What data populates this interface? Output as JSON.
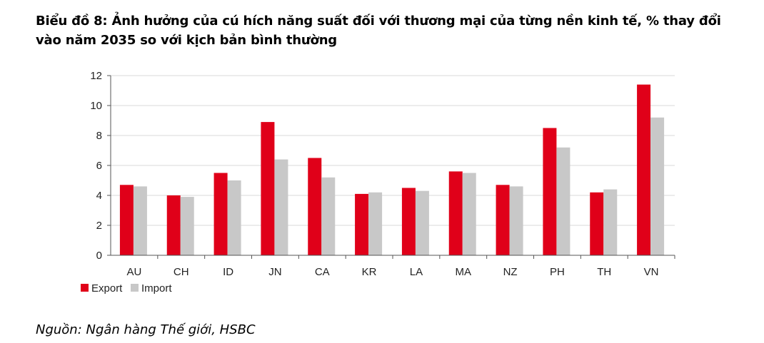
{
  "title": "Biểu đồ 8: Ảnh hưởng của cú hích năng suất đối với thương mại của từng nền kinh tế, % thay đổi vào năm 2035 so với kịch bản bình thường",
  "source": "Nguồn: Ngân hàng Thế giới, HSBC",
  "chart_data": {
    "type": "bar",
    "categories": [
      "AU",
      "CH",
      "ID",
      "JN",
      "CA",
      "KR",
      "LA",
      "MA",
      "NZ",
      "PH",
      "TH",
      "VN"
    ],
    "series": [
      {
        "name": "Export",
        "color": "#e00019",
        "values": [
          4.7,
          4.0,
          5.5,
          8.9,
          6.5,
          4.1,
          4.5,
          5.6,
          4.7,
          8.5,
          4.2,
          11.4
        ]
      },
      {
        "name": "Import",
        "color": "#c8c8c8",
        "values": [
          4.6,
          3.9,
          5.0,
          6.4,
          5.2,
          4.2,
          4.3,
          5.5,
          4.6,
          7.2,
          4.4,
          9.2
        ]
      }
    ],
    "ylim": [
      0,
      12
    ],
    "yticks": [
      0,
      2,
      4,
      6,
      8,
      10,
      12
    ],
    "grid": true,
    "legend": "bottom-left"
  }
}
